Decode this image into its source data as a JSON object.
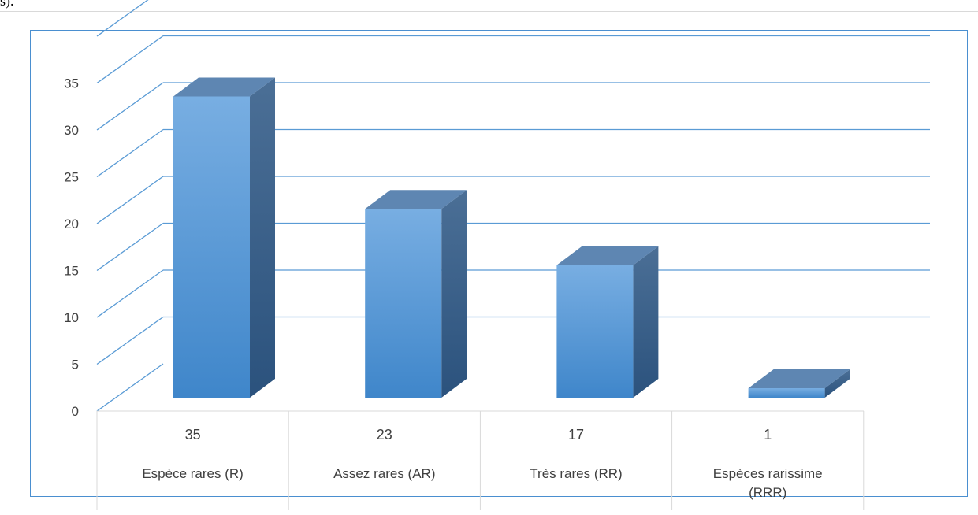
{
  "top_fragment_text": "s).",
  "chart_data": {
    "type": "bar",
    "title": "",
    "xlabel": "",
    "ylabel": "",
    "categories": [
      "Espèce rares (R)",
      "Assez rares (AR)",
      "Très rares (RR)",
      "Espèces rarissime (RRR)"
    ],
    "values": [
      35,
      23,
      17,
      1
    ],
    "value_labels": [
      "35",
      "23",
      "17",
      "1"
    ],
    "ylim": [
      0,
      35
    ],
    "y_ticks": [
      0,
      5,
      10,
      15,
      20,
      25,
      30,
      35
    ],
    "grid": true,
    "three_d": true,
    "data_table_below": true,
    "colors": {
      "bar_front_top": "#78aee2",
      "bar_front_bottom": "#3f86ca",
      "bar_side": "#2f5f8f",
      "bar_top": "#5e86b2",
      "grid": "#5a9bd5",
      "frame": "#4a8fd0",
      "table_lines": "#d9d9d9"
    }
  }
}
